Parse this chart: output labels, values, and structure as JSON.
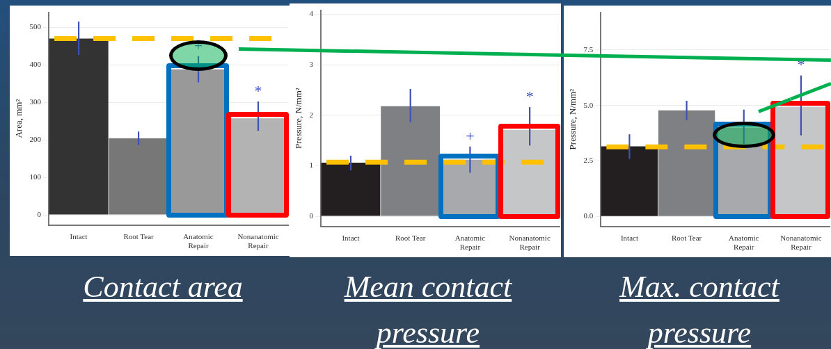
{
  "chart_data": [
    {
      "type": "bar",
      "title": "Contact area",
      "ylabel": "Area, mm²",
      "categories": [
        "Intact",
        "Root Tear",
        "Anatomic Repair",
        "Nonanatomic Repair"
      ],
      "values": [
        470,
        204,
        388,
        257
      ],
      "colors": [
        "#333333",
        "#777777",
        "#999999",
        "#b3b3b3"
      ],
      "errors": [
        [
          426,
          515
        ],
        [
          186,
          222
        ],
        [
          353,
          423
        ],
        [
          224,
          302
        ]
      ],
      "ylim": [
        -27,
        540
      ],
      "yticks": [
        0,
        100,
        200,
        300,
        400,
        500
      ],
      "grid": "y",
      "ref_lines": [
        {
          "axis": "y",
          "value": 470,
          "color": "#ffc000",
          "line_style": "dashed"
        }
      ],
      "annotations": [
        "+",
        "*"
      ]
    },
    {
      "type": "bar",
      "title": "Mean contact pressure",
      "ylabel": "Pressure, N/mm²",
      "categories": [
        "Intact",
        "Root Tear",
        "Anatomic Repair",
        "Nonanatomic Repair"
      ],
      "values": [
        1.06,
        2.18,
        1.12,
        1.71
      ],
      "colors": [
        "#231f20",
        "#7f8083",
        "#a7a9ac",
        "#c5c6c8"
      ],
      "errors": [
        [
          0.91,
          1.2
        ],
        [
          1.86,
          2.52
        ],
        [
          0.86,
          1.38
        ],
        [
          1.4,
          2.16
        ]
      ],
      "ylim": [
        -0.2,
        4.08
      ],
      "yticks": [
        0,
        1,
        2,
        3,
        4
      ],
      "grid": "y",
      "ref_lines": [
        {
          "axis": "y",
          "value": 1.07,
          "color": "#ffc000",
          "line_style": "dashed"
        }
      ],
      "annotations": [
        "+",
        "*"
      ]
    },
    {
      "type": "bar",
      "title": "Max. contact pressure",
      "ylabel": "Pressure, N/mm²",
      "categories": [
        "Intact",
        "Root Tear",
        "Anatomic Repair",
        "Nonanatomic Repair"
      ],
      "values": [
        3.16,
        4.78,
        4.0,
        4.94
      ],
      "colors": [
        "#231f20",
        "#7f8083",
        "#a7a9ac",
        "#c5c6c8"
      ],
      "errors": [
        [
          2.59,
          3.7
        ],
        [
          4.34,
          5.21
        ],
        [
          3.26,
          4.81
        ],
        [
          3.65,
          6.35
        ]
      ],
      "ylim": [
        -0.45,
        9.2
      ],
      "yticks": [
        {
          "value": 0,
          "label": "0.0"
        },
        2.5,
        {
          "value": 5,
          "label": "5.0"
        },
        7.5
      ],
      "grid": "y",
      "ref_lines": [
        {
          "axis": "y",
          "value": 3.13,
          "color": "#ffc000",
          "line_style": "dashed"
        }
      ],
      "annotations": [
        "*"
      ]
    }
  ]
}
